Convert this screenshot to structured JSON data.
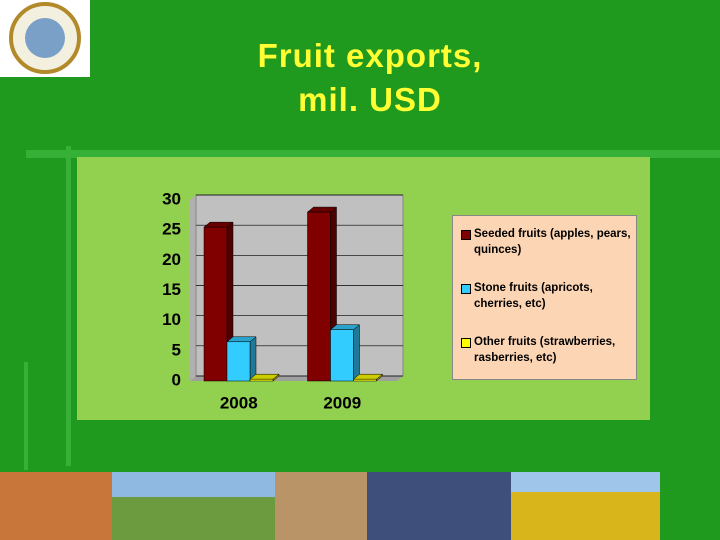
{
  "chart_data": {
    "type": "bar3d",
    "title": [
      "Fruit exports,",
      "mil. USD"
    ],
    "categories": [
      "2008",
      "2009"
    ],
    "series": [
      {
        "name": "Seeded fruits (apples, pears, quinces)",
        "color": "#800000",
        "values": [
          25.5,
          28
        ]
      },
      {
        "name": "Stone fruits (apricots, cherries, etc)",
        "color": "#33ccff",
        "values": [
          6.5,
          8.5
        ]
      },
      {
        "name": "Other fruits (strawberries, rasberries, etc)",
        "color": "#ffff00",
        "values": [
          0.3,
          0.3
        ]
      }
    ],
    "ylim": [
      0,
      30
    ],
    "yticks": [
      0,
      5,
      10,
      15,
      20,
      25,
      30
    ],
    "grid": true,
    "legend": "right"
  }
}
